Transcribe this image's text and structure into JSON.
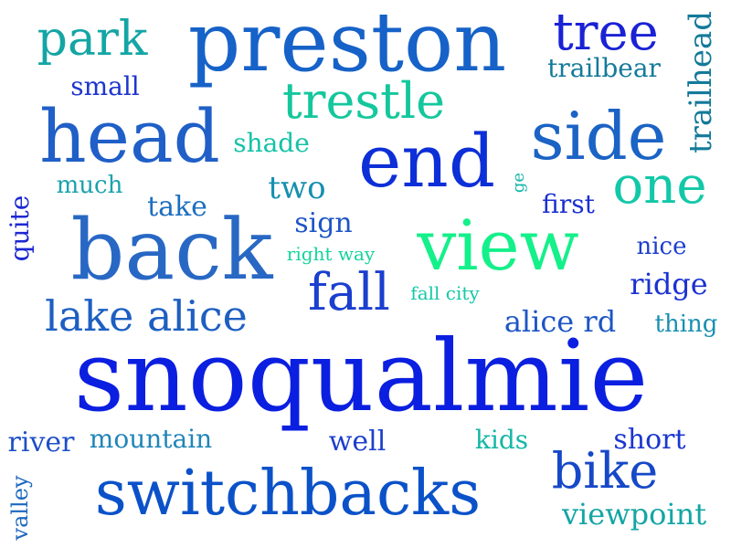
{
  "cloud": {
    "words": [
      {
        "text": "snoqualmie",
        "weight": 1.0,
        "color": "#0b1fe0"
      },
      {
        "text": "switchbacks",
        "weight": 0.7,
        "color": "#0b52c9"
      },
      {
        "text": "back",
        "weight": 0.7,
        "color": "#2868c4"
      },
      {
        "text": "preston",
        "weight": 0.7,
        "color": "#1662c8"
      },
      {
        "text": "end",
        "weight": 0.6,
        "color": "#0d2fd7"
      },
      {
        "text": "side",
        "weight": 0.6,
        "color": "#1b63c4"
      },
      {
        "text": "view",
        "weight": 0.6,
        "color": "#14f08a"
      },
      {
        "text": "head",
        "weight": 0.6,
        "color": "#1f5fc7"
      },
      {
        "text": "bike",
        "weight": 0.45,
        "color": "#1648c8"
      },
      {
        "text": "trestle",
        "weight": 0.42,
        "color": "#14c79d"
      },
      {
        "text": "tree",
        "weight": 0.42,
        "color": "#1a22d6"
      },
      {
        "text": "park",
        "weight": 0.42,
        "color": "#14a5a5"
      },
      {
        "text": "fall",
        "weight": 0.42,
        "color": "#1b3fcf"
      },
      {
        "text": "one",
        "weight": 0.42,
        "color": "#12c8a8"
      },
      {
        "text": "lake alice",
        "weight": 0.35,
        "color": "#1d5fc2"
      },
      {
        "text": "trailhead",
        "weight": 0.25,
        "color": "#147a9a"
      },
      {
        "text": "ridge",
        "weight": 0.25,
        "color": "#1a32d2"
      },
      {
        "text": "alice rd",
        "weight": 0.25,
        "color": "#1d55c6"
      },
      {
        "text": "viewpoint",
        "weight": 0.24,
        "color": "#14a5a5"
      },
      {
        "text": "mountain",
        "weight": 0.2,
        "color": "#2185b8"
      },
      {
        "text": "river",
        "weight": 0.22,
        "color": "#1d4fc6"
      },
      {
        "text": "two",
        "weight": 0.22,
        "color": "#158fb0"
      },
      {
        "text": "short",
        "weight": 0.2,
        "color": "#1a36cf"
      },
      {
        "text": "well",
        "weight": 0.2,
        "color": "#1d3fcc"
      },
      {
        "text": "take",
        "weight": 0.2,
        "color": "#1d6fbe"
      },
      {
        "text": "sign",
        "weight": 0.2,
        "color": "#1d55c6"
      },
      {
        "text": "small",
        "weight": 0.18,
        "color": "#1d35cc"
      },
      {
        "text": "trailbear",
        "weight": 0.18,
        "color": "#147a9a"
      },
      {
        "text": "shade",
        "weight": 0.18,
        "color": "#14c2a8"
      },
      {
        "text": "much",
        "weight": 0.18,
        "color": "#1aa3ad"
      },
      {
        "text": "kids",
        "weight": 0.18,
        "color": "#14b7a6"
      },
      {
        "text": "first",
        "weight": 0.18,
        "color": "#1a2fd0"
      },
      {
        "text": "nice",
        "weight": 0.16,
        "color": "#1d3fcc"
      },
      {
        "text": "thing",
        "weight": 0.16,
        "color": "#1a8fb2"
      },
      {
        "text": "quite",
        "weight": 0.18,
        "color": "#1d28d2"
      },
      {
        "text": "valley",
        "weight": 0.16,
        "color": "#1d68bf"
      },
      {
        "text": "fall city",
        "weight": 0.12,
        "color": "#14c8a6"
      },
      {
        "text": "right way",
        "weight": 0.12,
        "color": "#14d49a"
      },
      {
        "text": "ge",
        "weight": 0.12,
        "color": "#14b5aa"
      }
    ]
  }
}
